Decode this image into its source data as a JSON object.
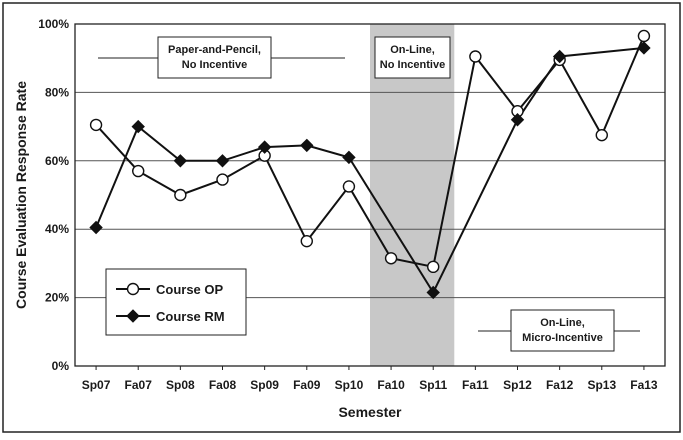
{
  "chart_data": {
    "type": "line",
    "xlabel": "Semester",
    "ylabel": "Course Evaluation Response Rate",
    "categories": [
      "Sp07",
      "Fa07",
      "Sp08",
      "Fa08",
      "Sp09",
      "Fa09",
      "Sp10",
      "Fa10",
      "Sp11",
      "Fa11",
      "Sp12",
      "Fa12",
      "Sp13",
      "Fa13"
    ],
    "ylim": [
      0,
      100
    ],
    "y_ticks": [
      "0%",
      "20%",
      "40%",
      "60%",
      "80%",
      "100%"
    ],
    "grid": "horizontal",
    "legend_position": "bottom-left",
    "series": [
      {
        "name": "Course OP",
        "marker": "circle",
        "values": [
          70.5,
          57,
          50,
          54.5,
          61.5,
          36.5,
          52.5,
          31.5,
          29,
          90.5,
          74.5,
          89.5,
          67.5,
          96.5
        ]
      },
      {
        "name": "Course RM",
        "marker": "diamond",
        "values": [
          40.5,
          70,
          60,
          60,
          64,
          64.5,
          61,
          null,
          21.5,
          null,
          72,
          90.5,
          null,
          93
        ]
      }
    ],
    "shaded_region": {
      "from": "Fa10",
      "to": "Sp11",
      "color": "#c8c8c8"
    },
    "annotations": [
      {
        "lines": [
          "Paper-and-Pencil,",
          "No Incentive"
        ]
      },
      {
        "lines": [
          "On-Line,",
          "No Incentive"
        ]
      },
      {
        "lines": [
          "On-Line,",
          "Micro-Incentive"
        ]
      }
    ]
  }
}
